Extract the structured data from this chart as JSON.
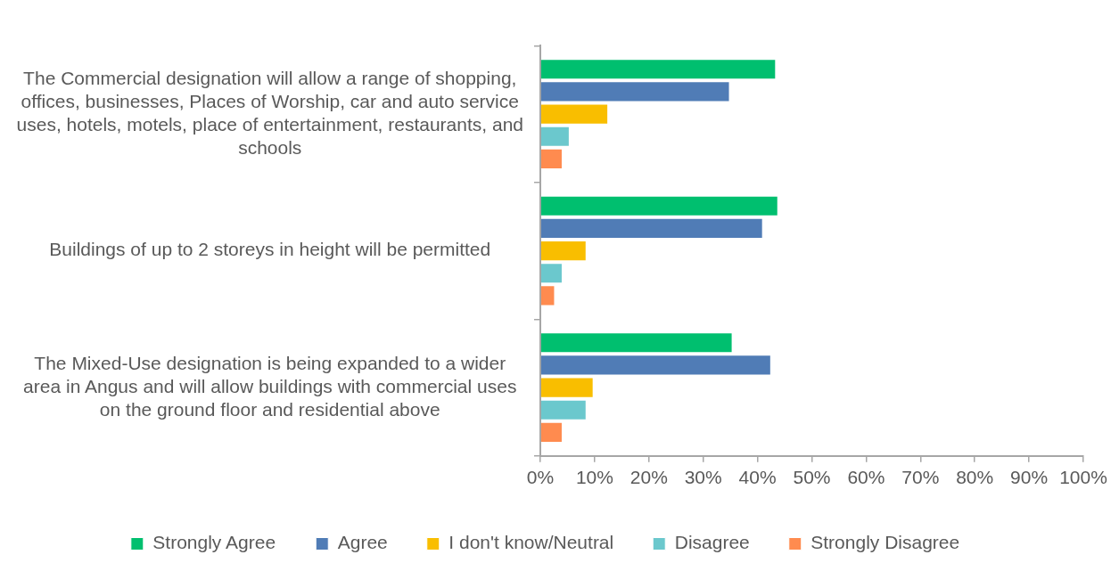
{
  "chart_data": {
    "type": "bar",
    "orientation": "horizontal",
    "categories": [
      "The Commercial designation will allow a range of shopping, offices, businesses, Places of Worship, car and auto service uses, hotels, motels, place of entertainment, restaurants, and schools",
      "Buildings of up to 2 storeys in height will be permitted",
      "The Mixed-Use designation is being expanded to a wider area in Angus and will allow buildings with commercial uses on the ground floor and residential above"
    ],
    "series": [
      {
        "name": "Strongly Agree",
        "color": "#00bf6f",
        "values": [
          43.4,
          43.8,
          35.4
        ]
      },
      {
        "name": "Agree",
        "color": "#507cb6",
        "values": [
          34.9,
          41.0,
          42.5
        ]
      },
      {
        "name": "I don't know/Neutral",
        "color": "#f9be00",
        "values": [
          12.5,
          8.5,
          9.8
        ]
      },
      {
        "name": "Disagree",
        "color": "#6bc8cd",
        "values": [
          5.4,
          4.1,
          8.5
        ]
      },
      {
        "name": "Strongly Disagree",
        "color": "#ff8b4f",
        "values": [
          4.1,
          2.7,
          4.1
        ]
      }
    ],
    "xlim": [
      0,
      100
    ],
    "xticks": [
      {
        "value": 0,
        "label": "0%"
      },
      {
        "value": 10,
        "label": "10%"
      },
      {
        "value": 20,
        "label": "20%"
      },
      {
        "value": 30,
        "label": "30%"
      },
      {
        "value": 40,
        "label": "40%"
      },
      {
        "value": 50,
        "label": "50%"
      },
      {
        "value": 60,
        "label": "60%"
      },
      {
        "value": 70,
        "label": "70%"
      },
      {
        "value": 80,
        "label": "80%"
      },
      {
        "value": 90,
        "label": "90%"
      },
      {
        "value": 100,
        "label": "100%"
      }
    ],
    "grid": false,
    "legend": "bottom"
  }
}
